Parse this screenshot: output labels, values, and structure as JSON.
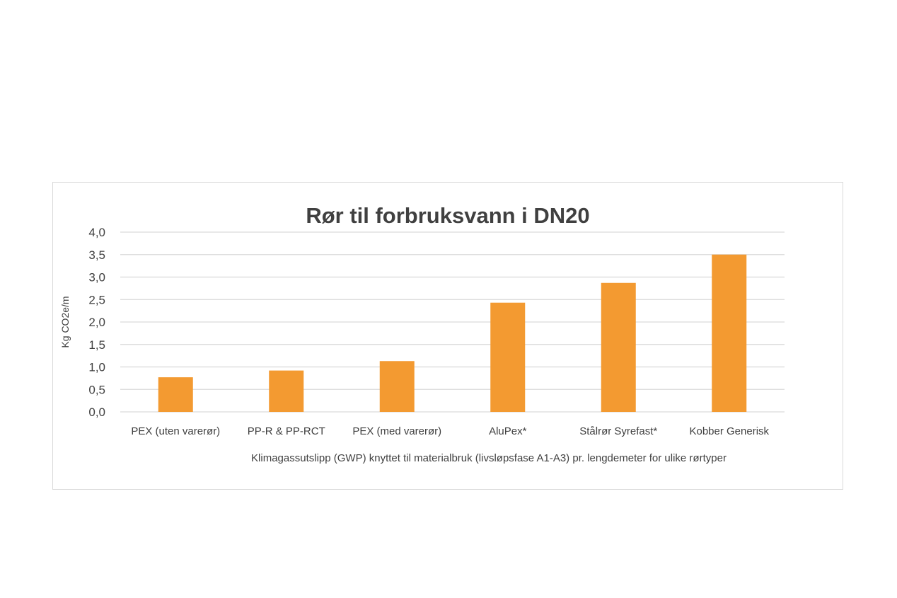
{
  "chart_data": {
    "type": "bar",
    "title": "Rør til forbruksvann i DN20",
    "ylabel": "Kg CO2e/m",
    "xlabel": "Klimagassutslipp (GWP) knyttet til materialbruk (livsløpsfase A1-A3) pr. lengdemeter for ulike rørtyper",
    "categories": [
      "PEX (uten varerør)",
      "PP-R & PP-RCT",
      "PEX (med varerør)",
      "AluPex*",
      "Stålrør Syrefast*",
      "Kobber Generisk"
    ],
    "values": [
      0.77,
      0.92,
      1.13,
      2.43,
      2.87,
      3.5
    ],
    "ylim": [
      0,
      4
    ],
    "yticks": [
      "0,0",
      "0,5",
      "1,0",
      "1,5",
      "2,0",
      "2,5",
      "3,0",
      "3,5",
      "4,0"
    ],
    "grid": true,
    "bar_color": "#f39a31",
    "grid_color": "#d9d9d9"
  }
}
